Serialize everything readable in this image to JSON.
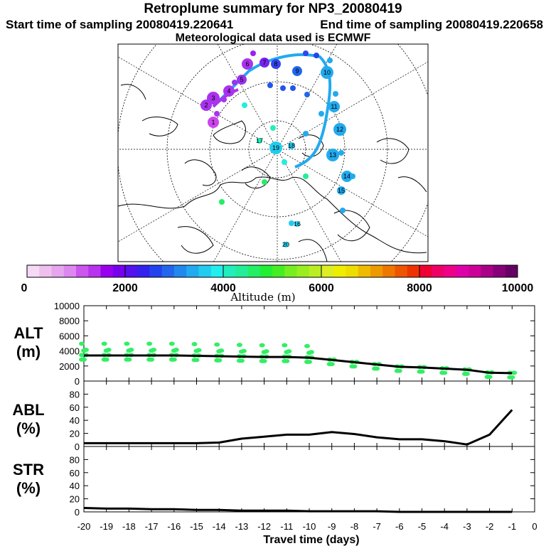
{
  "header": {
    "title": "Retroplume summary for NP3_20080419",
    "start_time": "Start time of sampling 20080419.220641",
    "end_time": "End time of sampling 20080419.220658",
    "met_data": "Meteorological data used is ECMWF"
  },
  "colorbar": {
    "ticks": [
      "0",
      "2000",
      "4000",
      "6000",
      "8000",
      "10000"
    ],
    "label": "Altitude (m)",
    "colors": [
      "#f5d9f5",
      "#eec0ee",
      "#e6a6ee",
      "#dd88ee",
      "#cc55ee",
      "#b833ee",
      "#9900ee",
      "#7700ee",
      "#5511ee",
      "#3322ee",
      "#2244ee",
      "#2266ee",
      "#2288ee",
      "#22aaee",
      "#22ccee",
      "#22eeee",
      "#22eebb",
      "#22ee99",
      "#22ee66",
      "#22ee33",
      "#44ee22",
      "#77ee22",
      "#99ee22",
      "#bbee22",
      "#ddee22",
      "#eeee00",
      "#eedd00",
      "#eebb00",
      "#ee9900",
      "#ee7700",
      "#ee5500",
      "#ee3300",
      "#ee0033",
      "#ee0066",
      "#ee0088",
      "#dd00aa",
      "#cc0099",
      "#aa0088",
      "#880077",
      "#660066"
    ]
  },
  "map": {
    "point_labels": [
      "1",
      "2",
      "3",
      "4",
      "5",
      "6",
      "7",
      "8",
      "9",
      "10",
      "11",
      "12",
      "13",
      "14",
      "15",
      "16",
      "17",
      "18",
      "19",
      "20"
    ]
  },
  "chart_data": [
    {
      "type": "line",
      "name": "ALT",
      "ylabel": "ALT\n(m)",
      "y_title_lines": [
        "ALT",
        "(m)"
      ],
      "ylim": [
        0,
        10000
      ],
      "yticks": [
        "0",
        "2000",
        "4000",
        "6000",
        "8000",
        "10000"
      ],
      "xlim": [
        -20,
        0
      ],
      "x": [
        -20,
        -19,
        -18,
        -17,
        -16,
        -15,
        -14,
        -13,
        -12,
        -11,
        -10,
        -9,
        -8,
        -7,
        -6,
        -5,
        -4,
        -3,
        -2,
        -1
      ],
      "values": [
        3400,
        3400,
        3400,
        3400,
        3400,
        3350,
        3300,
        3250,
        3200,
        3200,
        3100,
        2800,
        2500,
        2200,
        1900,
        1800,
        1650,
        1500,
        1100,
        1050
      ],
      "scatter_color": "#33ee66"
    },
    {
      "type": "line",
      "name": "ABL",
      "ylabel": "ABL\n(%)",
      "y_title_lines": [
        "ABL",
        "(%)"
      ],
      "ylim": [
        0,
        100
      ],
      "yticks": [
        "0",
        "20",
        "40",
        "60",
        "80"
      ],
      "xlim": [
        -20,
        0
      ],
      "x": [
        -20,
        -19,
        -18,
        -17,
        -16,
        -15,
        -14,
        -13,
        -12,
        -11,
        -10,
        -9,
        -8,
        -7,
        -6,
        -5,
        -4,
        -3,
        -2,
        -1
      ],
      "values": [
        5,
        5,
        5,
        5,
        5,
        5,
        6,
        12,
        15,
        18,
        18,
        22,
        19,
        14,
        11,
        11,
        8,
        3,
        18,
        56
      ]
    },
    {
      "type": "line",
      "name": "STR",
      "ylabel": "STR\n(%)",
      "y_title_lines": [
        "STR",
        "(%)"
      ],
      "ylim": [
        0,
        100
      ],
      "yticks": [
        "0",
        "20",
        "40",
        "60",
        "80"
      ],
      "xlim": [
        -20,
        0
      ],
      "x": [
        -20,
        -19,
        -18,
        -17,
        -16,
        -15,
        -14,
        -13,
        -12,
        -11,
        -10,
        -9,
        -8,
        -7,
        -6,
        -5,
        -4,
        -3,
        -2,
        -1
      ],
      "values": [
        6,
        5,
        5,
        4,
        4,
        3,
        3,
        2,
        2,
        2,
        1,
        1,
        1,
        1,
        0,
        0,
        0,
        0,
        0,
        0
      ],
      "xlabel": "Travel time (days)",
      "xticks": [
        "-20",
        "-19",
        "-18",
        "-17",
        "-16",
        "-15",
        "-14",
        "-13",
        "-12",
        "-11",
        "-10",
        "-9",
        "-8",
        "-7",
        "-6",
        "-5",
        "-4",
        "-3",
        "-2",
        "-1",
        "0"
      ]
    }
  ]
}
